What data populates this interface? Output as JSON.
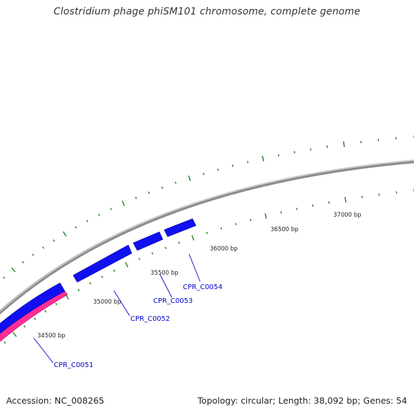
{
  "title": "Clostridium phage phiSM101 chromosome, complete genome",
  "footer": {
    "accession": "Accession: NC_008265",
    "topology": "Topology: circular; Length: 38,092 bp; Genes: 54"
  },
  "colors": {
    "backbone": "#8c8c8c",
    "forward_cds": "#1010f0",
    "reverse_cds": "#ff2d96",
    "ticks": "#1f7a1f",
    "gene_label": "#0000cc",
    "tick_label": "#222222"
  },
  "tick_labels": [
    "34500 bp",
    "35000 bp",
    "35500 bp",
    "36000 bp",
    "36500 bp",
    "37000 bp"
  ],
  "genes": [
    {
      "label": "CPR_C0051",
      "strand": "reverse"
    },
    {
      "label": "CPR_C0052",
      "strand": "forward"
    },
    {
      "label": "CPR_C0053",
      "strand": "forward"
    },
    {
      "label": "CPR_C0054",
      "strand": "forward"
    }
  ]
}
